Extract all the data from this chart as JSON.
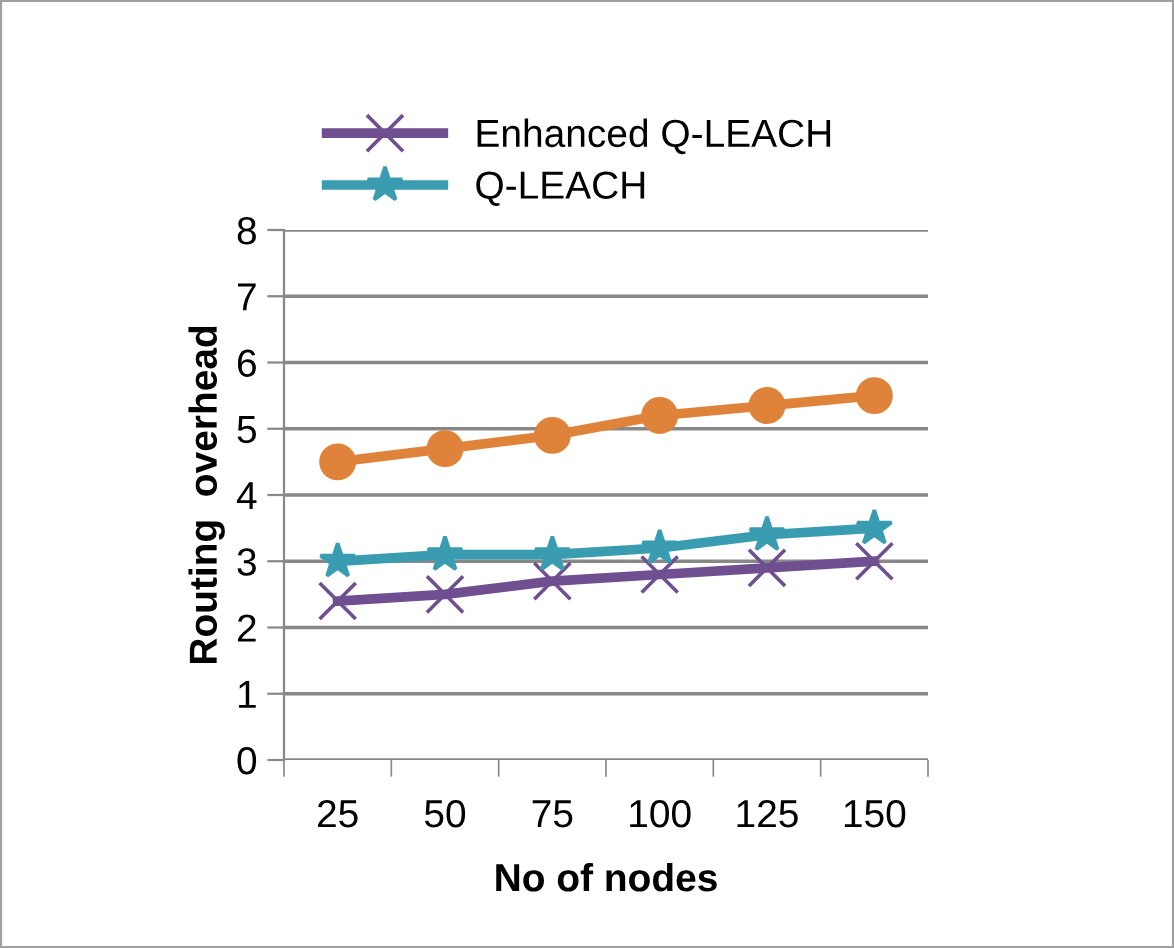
{
  "chart_data": {
    "type": "line",
    "xlabel": "No of nodes",
    "ylabel": "Routing  overhead",
    "categories": [
      "25",
      "50",
      "75",
      "100",
      "125",
      "150"
    ],
    "series": [
      {
        "name": "Enhanced Q-LEACH",
        "color": "#6f4f8f",
        "marker": "cross",
        "values": [
          2.4,
          2.5,
          2.7,
          2.8,
          2.9,
          3.0
        ]
      },
      {
        "name": "Q-LEACH",
        "color": "#3a9cb0",
        "marker": "star",
        "values": [
          3.0,
          3.1,
          3.1,
          3.2,
          3.4,
          3.5
        ]
      },
      {
        "color": "#e0833a",
        "marker": "circle",
        "values": [
          4.5,
          4.7,
          4.9,
          5.2,
          5.35,
          5.5
        ]
      }
    ],
    "ylim": [
      0,
      8
    ],
    "yticks": [
      0,
      1,
      2,
      3,
      4,
      5,
      6,
      7,
      8
    ],
    "grid": "y",
    "legend": "top"
  }
}
